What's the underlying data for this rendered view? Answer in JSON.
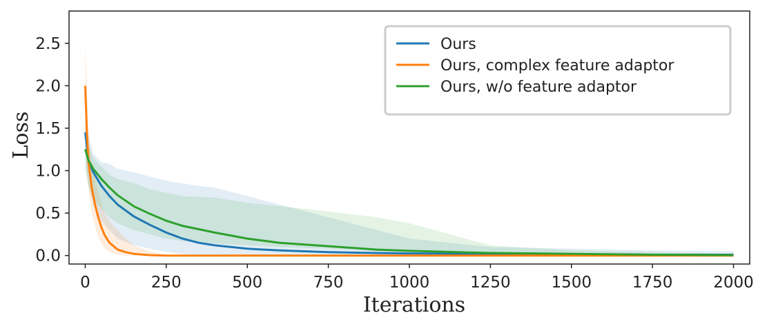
{
  "chart_data": {
    "type": "line",
    "xlabel": "Iterations",
    "ylabel": "Loss",
    "xlim": [
      -50,
      2050
    ],
    "ylim": [
      -0.1,
      2.88
    ],
    "xticks": [
      0,
      250,
      500,
      750,
      1000,
      1250,
      1500,
      1750,
      2000
    ],
    "yticks": [
      0.0,
      0.5,
      1.0,
      1.5,
      2.0,
      2.5
    ],
    "legend_position": "top-right",
    "series": [
      {
        "name": "Ours",
        "color": "#1f77b4",
        "x": [
          0,
          10,
          25,
          50,
          75,
          100,
          150,
          200,
          250,
          300,
          350,
          400,
          500,
          600,
          750,
          900,
          1000,
          1250,
          1500,
          1750,
          2000
        ],
        "y": [
          1.45,
          1.12,
          0.98,
          0.82,
          0.7,
          0.6,
          0.46,
          0.36,
          0.27,
          0.2,
          0.15,
          0.12,
          0.08,
          0.06,
          0.04,
          0.03,
          0.025,
          0.02,
          0.015,
          0.01,
          0.01
        ],
        "band_low": [
          1.1,
          0.85,
          0.6,
          0.4,
          0.3,
          0.2,
          0.12,
          0.08,
          0.04,
          0.02,
          0.01,
          0.0,
          0.0,
          0.0,
          0.0,
          0.0,
          0.0,
          0.0,
          0.0,
          0.0,
          0.0
        ],
        "band_high": [
          1.9,
          1.4,
          1.2,
          1.1,
          1.08,
          1.02,
          0.98,
          0.93,
          0.88,
          0.85,
          0.82,
          0.8,
          0.7,
          0.6,
          0.45,
          0.3,
          0.2,
          0.1,
          0.08,
          0.06,
          0.05
        ]
      },
      {
        "name": "Ours, complex feature adaptor",
        "color": "#ff7f0e",
        "x": [
          0,
          5,
          10,
          20,
          30,
          40,
          50,
          60,
          75,
          100,
          125,
          150,
          200,
          250,
          500,
          1000,
          1500,
          2000
        ],
        "y": [
          2.0,
          1.45,
          1.1,
          0.8,
          0.6,
          0.45,
          0.33,
          0.24,
          0.15,
          0.07,
          0.04,
          0.02,
          0.005,
          0.0,
          0.0,
          0.0,
          0.0,
          0.0
        ],
        "band_low": [
          1.5,
          1.0,
          0.8,
          0.5,
          0.35,
          0.22,
          0.14,
          0.08,
          0.04,
          0.01,
          0.0,
          0.0,
          0.0,
          0.0,
          0.0,
          0.0,
          0.0,
          0.0
        ],
        "band_high": [
          2.5,
          2.0,
          1.5,
          1.1,
          0.9,
          0.75,
          0.6,
          0.5,
          0.4,
          0.3,
          0.2,
          0.12,
          0.05,
          0.01,
          0.0,
          0.0,
          0.0,
          0.0
        ]
      },
      {
        "name": "Ours, w/o feature adaptor",
        "color": "#2ca02c",
        "x": [
          0,
          10,
          25,
          50,
          75,
          100,
          150,
          200,
          250,
          300,
          400,
          500,
          600,
          750,
          900,
          1000,
          1250,
          1500,
          1750,
          2000
        ],
        "y": [
          1.25,
          1.12,
          1.02,
          0.9,
          0.8,
          0.71,
          0.58,
          0.49,
          0.41,
          0.35,
          0.27,
          0.2,
          0.15,
          0.11,
          0.07,
          0.055,
          0.03,
          0.02,
          0.01,
          0.005
        ],
        "band_low": [
          1.0,
          0.8,
          0.65,
          0.55,
          0.45,
          0.38,
          0.3,
          0.25,
          0.2,
          0.17,
          0.14,
          0.12,
          0.1,
          0.08,
          0.05,
          0.04,
          0.02,
          0.01,
          0.0,
          0.0
        ],
        "band_high": [
          1.5,
          1.3,
          1.15,
          1.05,
          0.95,
          0.9,
          0.85,
          0.78,
          0.74,
          0.7,
          0.68,
          0.62,
          0.58,
          0.52,
          0.45,
          0.38,
          0.12,
          0.06,
          0.04,
          0.02
        ]
      }
    ]
  }
}
